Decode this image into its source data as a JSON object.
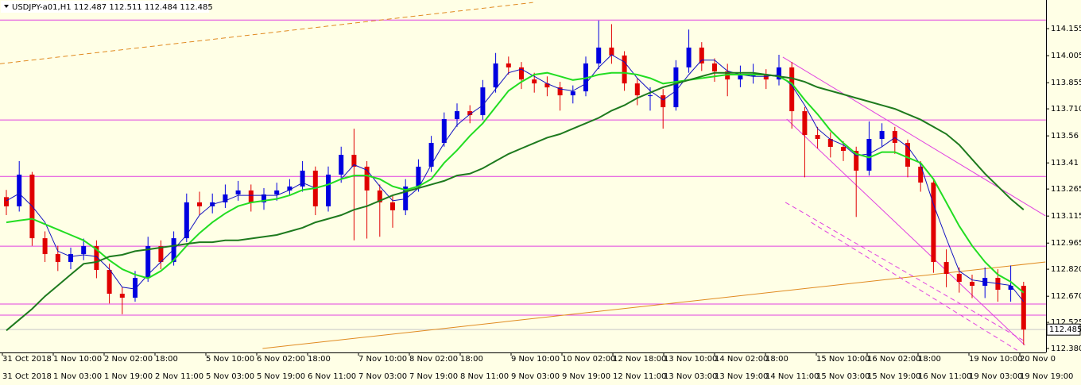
{
  "chart_data": {
    "type": "candlestick",
    "symbol": "USDJPY-a01,H1",
    "ohlc_header": [
      112.487,
      112.511,
      112.484,
      112.485
    ],
    "current_price": 112.485,
    "ylim": [
      112.358,
      114.314
    ],
    "yticks": [
      {
        "value": 112.38,
        "label": "112.380"
      },
      112.525,
      {
        "value": 112.67,
        "label": "112.670"
      },
      {
        "value": 112.82,
        "label": "112.820"
      },
      112.965,
      113.115,
      113.265,
      113.41,
      113.56,
      {
        "value": 113.71,
        "label": "113.710"
      },
      113.855,
      114.005,
      114.155
    ],
    "xlabels_top": [
      "31 Oct 2018",
      "1 Nov 10:00",
      "2 Nov 02:00",
      "18:00",
      "5 Nov 10:00",
      "6 Nov 02:00",
      "18:00",
      "7 Nov 10:00",
      "8 Nov 02:00",
      "18:00",
      "9 Nov 10:00",
      "10 Nov 02:00",
      "12 Nov 18:00",
      "13 Nov 10:00",
      "14 Nov 02:00",
      "18:00",
      "15 Nov 10:00",
      "16 Nov 02:00",
      "18:00",
      "19 Nov 10:00",
      "20 Nov 0"
    ],
    "xlabels_bottom": [
      "31 Oct 2018",
      "1 Nov 03:00",
      "1 Nov 19:00",
      "2 Nov 11:00",
      "5 Nov 03:00",
      "5 Nov 19:00",
      "6 Nov 11:00",
      "7 Nov 03:00",
      "7 Nov 19:00",
      "8 Nov 11:00",
      "9 Nov 03:00",
      "9 Nov 19:00",
      "12 Nov 11:00",
      "13 Nov 03:00",
      "13 Nov 19:00",
      "14 Nov 11:00",
      "15 Nov 03:00",
      "15 Nov 19:00",
      "16 Nov 11:00",
      "19 Nov 03:00",
      "19 Nov 19:00"
    ],
    "up_color": "#0000e0",
    "down_color": "#e00000",
    "open": [
      113.22,
      113.169,
      113.345,
      112.992,
      112.904,
      112.86,
      112.904,
      112.948,
      112.816,
      112.684,
      112.662,
      112.772,
      112.948,
      112.86,
      112.992,
      113.191,
      113.169,
      113.191,
      113.235,
      113.257,
      113.191,
      113.235,
      113.257,
      113.279,
      113.367,
      113.169,
      113.345,
      113.455,
      113.389,
      113.257,
      113.191,
      113.147,
      113.279,
      113.389,
      113.521,
      113.653,
      113.697,
      113.675,
      113.829,
      113.962,
      113.94,
      113.873,
      113.851,
      113.829,
      113.785,
      113.807,
      113.962,
      114.05,
      114.006,
      113.851,
      113.785,
      113.785,
      113.719,
      113.94,
      114.05,
      113.962,
      113.918,
      113.873,
      113.895,
      113.895,
      113.873,
      113.94,
      113.697,
      113.565,
      113.543,
      113.499,
      113.477,
      113.367,
      113.543,
      113.587,
      113.521,
      113.389,
      113.301,
      112.86,
      112.794,
      112.75,
      112.728,
      112.772,
      112.706,
      112.728
    ],
    "high": [
      113.26,
      113.42,
      113.36,
      113.03,
      112.95,
      112.94,
      112.99,
      112.98,
      112.85,
      112.72,
      112.81,
      113.0,
      112.98,
      113.03,
      113.24,
      113.25,
      113.24,
      113.29,
      113.31,
      113.29,
      113.27,
      113.3,
      113.32,
      113.42,
      113.39,
      113.39,
      113.5,
      113.6,
      113.42,
      113.29,
      113.23,
      113.32,
      113.43,
      113.56,
      113.69,
      113.74,
      113.73,
      113.87,
      114.02,
      114.0,
      113.97,
      113.91,
      113.89,
      113.86,
      113.84,
      114.0,
      114.2,
      114.18,
      114.03,
      113.88,
      113.83,
      113.82,
      113.98,
      114.15,
      114.08,
      113.99,
      113.96,
      113.95,
      113.96,
      113.93,
      114.01,
      113.97,
      113.72,
      113.61,
      113.58,
      113.53,
      113.5,
      113.64,
      113.63,
      113.61,
      113.54,
      113.42,
      113.32,
      112.93,
      112.83,
      112.79,
      112.83,
      112.82,
      112.84,
      112.75
    ],
    "low": [
      113.12,
      113.14,
      112.95,
      112.86,
      112.81,
      112.82,
      112.87,
      112.77,
      112.63,
      112.57,
      112.64,
      112.75,
      112.82,
      112.84,
      112.97,
      113.12,
      113.13,
      113.16,
      113.2,
      113.14,
      113.15,
      113.2,
      113.23,
      113.25,
      113.12,
      113.14,
      113.3,
      112.98,
      112.99,
      113.0,
      113.05,
      113.12,
      113.25,
      113.36,
      113.5,
      113.61,
      113.63,
      113.65,
      113.8,
      113.9,
      113.82,
      113.8,
      113.78,
      113.7,
      113.74,
      113.78,
      113.93,
      113.96,
      113.81,
      113.73,
      113.7,
      113.6,
      113.7,
      113.91,
      113.92,
      113.86,
      113.78,
      113.83,
      113.85,
      113.82,
      113.84,
      113.6,
      113.33,
      113.49,
      113.44,
      113.42,
      113.11,
      113.34,
      113.5,
      113.46,
      113.33,
      113.25,
      112.8,
      112.72,
      112.69,
      112.66,
      112.66,
      112.64,
      112.64,
      112.4
    ],
    "close": [
      113.169,
      113.345,
      112.992,
      112.904,
      112.86,
      112.904,
      112.948,
      112.816,
      112.684,
      112.662,
      112.772,
      112.948,
      112.86,
      112.992,
      113.191,
      113.169,
      113.191,
      113.235,
      113.257,
      113.191,
      113.235,
      113.257,
      113.279,
      113.367,
      113.169,
      113.345,
      113.455,
      113.389,
      113.257,
      113.191,
      113.147,
      113.279,
      113.389,
      113.521,
      113.653,
      113.697,
      113.675,
      113.829,
      113.962,
      113.94,
      113.873,
      113.851,
      113.829,
      113.785,
      113.807,
      113.962,
      114.05,
      114.006,
      113.851,
      113.785,
      113.785,
      113.719,
      113.94,
      114.05,
      113.962,
      113.918,
      113.873,
      113.895,
      113.895,
      113.873,
      113.94,
      113.697,
      113.565,
      113.543,
      113.499,
      113.477,
      113.367,
      113.543,
      113.587,
      113.521,
      113.389,
      113.301,
      112.86,
      112.794,
      112.75,
      112.728,
      112.772,
      112.706,
      112.728,
      112.485
    ],
    "lines": [
      {
        "color": "#1010c0",
        "width": 1,
        "values": [
          113.2,
          113.24,
          113.17,
          113.08,
          112.92,
          112.89,
          112.9,
          112.89,
          112.82,
          112.72,
          112.71,
          112.79,
          112.86,
          112.93,
          113.01,
          113.12,
          113.18,
          113.2,
          113.23,
          113.23,
          113.23,
          113.23,
          113.26,
          113.3,
          113.27,
          113.29,
          113.32,
          113.4,
          113.37,
          113.28,
          113.2,
          113.21,
          113.27,
          113.4,
          113.52,
          113.62,
          113.68,
          113.73,
          113.82,
          113.91,
          113.93,
          113.89,
          113.85,
          113.82,
          113.81,
          113.85,
          113.94,
          114.01,
          113.97,
          113.88,
          113.81,
          113.76,
          113.81,
          113.9,
          113.98,
          113.98,
          113.92,
          113.9,
          113.89,
          113.89,
          113.9,
          113.84,
          113.73,
          113.6,
          113.54,
          113.51,
          113.45,
          113.46,
          113.5,
          113.55,
          113.5,
          113.4,
          113.18,
          112.99,
          112.81,
          112.76,
          112.75,
          112.74,
          112.73,
          112.64
        ]
      },
      {
        "color": "#22dd22",
        "width": 2,
        "values": [
          113.08,
          113.09,
          113.1,
          113.07,
          113.04,
          113.01,
          112.98,
          112.93,
          112.87,
          112.82,
          112.79,
          112.77,
          112.81,
          112.87,
          112.95,
          113.02,
          113.08,
          113.13,
          113.17,
          113.19,
          113.2,
          113.21,
          113.23,
          113.26,
          113.27,
          113.29,
          113.32,
          113.34,
          113.34,
          113.32,
          113.28,
          113.26,
          113.28,
          113.32,
          113.41,
          113.48,
          113.56,
          113.63,
          113.72,
          113.81,
          113.86,
          113.9,
          113.91,
          113.89,
          113.87,
          113.88,
          113.9,
          113.91,
          113.91,
          113.9,
          113.88,
          113.85,
          113.86,
          113.87,
          113.88,
          113.89,
          113.9,
          113.9,
          113.9,
          113.9,
          113.89,
          113.85,
          113.76,
          113.68,
          113.59,
          113.52,
          113.46,
          113.44,
          113.47,
          113.47,
          113.44,
          113.41,
          113.32,
          113.19,
          113.06,
          112.95,
          112.86,
          112.79,
          112.75,
          112.69
        ]
      },
      {
        "color": "#1e7a1e",
        "width": 2,
        "values": [
          112.48,
          112.54,
          112.6,
          112.67,
          112.73,
          112.79,
          112.85,
          112.86,
          112.89,
          112.9,
          112.92,
          112.93,
          112.94,
          112.95,
          112.96,
          112.97,
          112.97,
          112.98,
          112.98,
          112.99,
          113.0,
          113.01,
          113.03,
          113.05,
          113.08,
          113.1,
          113.12,
          113.15,
          113.17,
          113.2,
          113.23,
          113.25,
          113.27,
          113.29,
          113.31,
          113.34,
          113.35,
          113.38,
          113.42,
          113.46,
          113.49,
          113.52,
          113.55,
          113.57,
          113.6,
          113.63,
          113.66,
          113.7,
          113.73,
          113.77,
          113.8,
          113.83,
          113.85,
          113.87,
          113.89,
          113.91,
          113.91,
          113.91,
          113.91,
          113.9,
          113.89,
          113.88,
          113.86,
          113.83,
          113.81,
          113.79,
          113.77,
          113.75,
          113.73,
          113.71,
          113.68,
          113.65,
          113.61,
          113.57,
          113.51,
          113.43,
          113.35,
          113.28,
          113.21,
          113.15
        ]
      }
    ],
    "levels": [
      114.203,
      113.648,
      113.335,
      112.948,
      112.627,
      112.565
    ],
    "level_color": "#e040e0",
    "trendlines": [
      {
        "x": [
          -0.5,
          40.9
        ],
        "y": [
          113.96,
          114.3
        ],
        "color": "#e08a20",
        "dash": true
      },
      {
        "x": [
          19.9,
          80.7
        ],
        "y": [
          112.38,
          112.86
        ],
        "color": "#e08a20",
        "dash": false
      },
      {
        "x": [
          60.3,
          80.7
        ],
        "y": [
          113.997,
          113.116
        ],
        "color": "#e040e0",
        "dash": false
      },
      {
        "x": [
          60.6,
          79.1
        ],
        "y": [
          113.653,
          112.398
        ],
        "color": "#e040e0",
        "dash": false
      },
      {
        "x": [
          60.5,
          79.1
        ],
        "y": [
          113.191,
          112.42
        ],
        "color": "#e040e0",
        "dash": true
      },
      {
        "x": [
          62.5,
          78.5
        ],
        "y": [
          113.08,
          112.37
        ],
        "color": "#e040e0",
        "dash": true
      }
    ]
  }
}
